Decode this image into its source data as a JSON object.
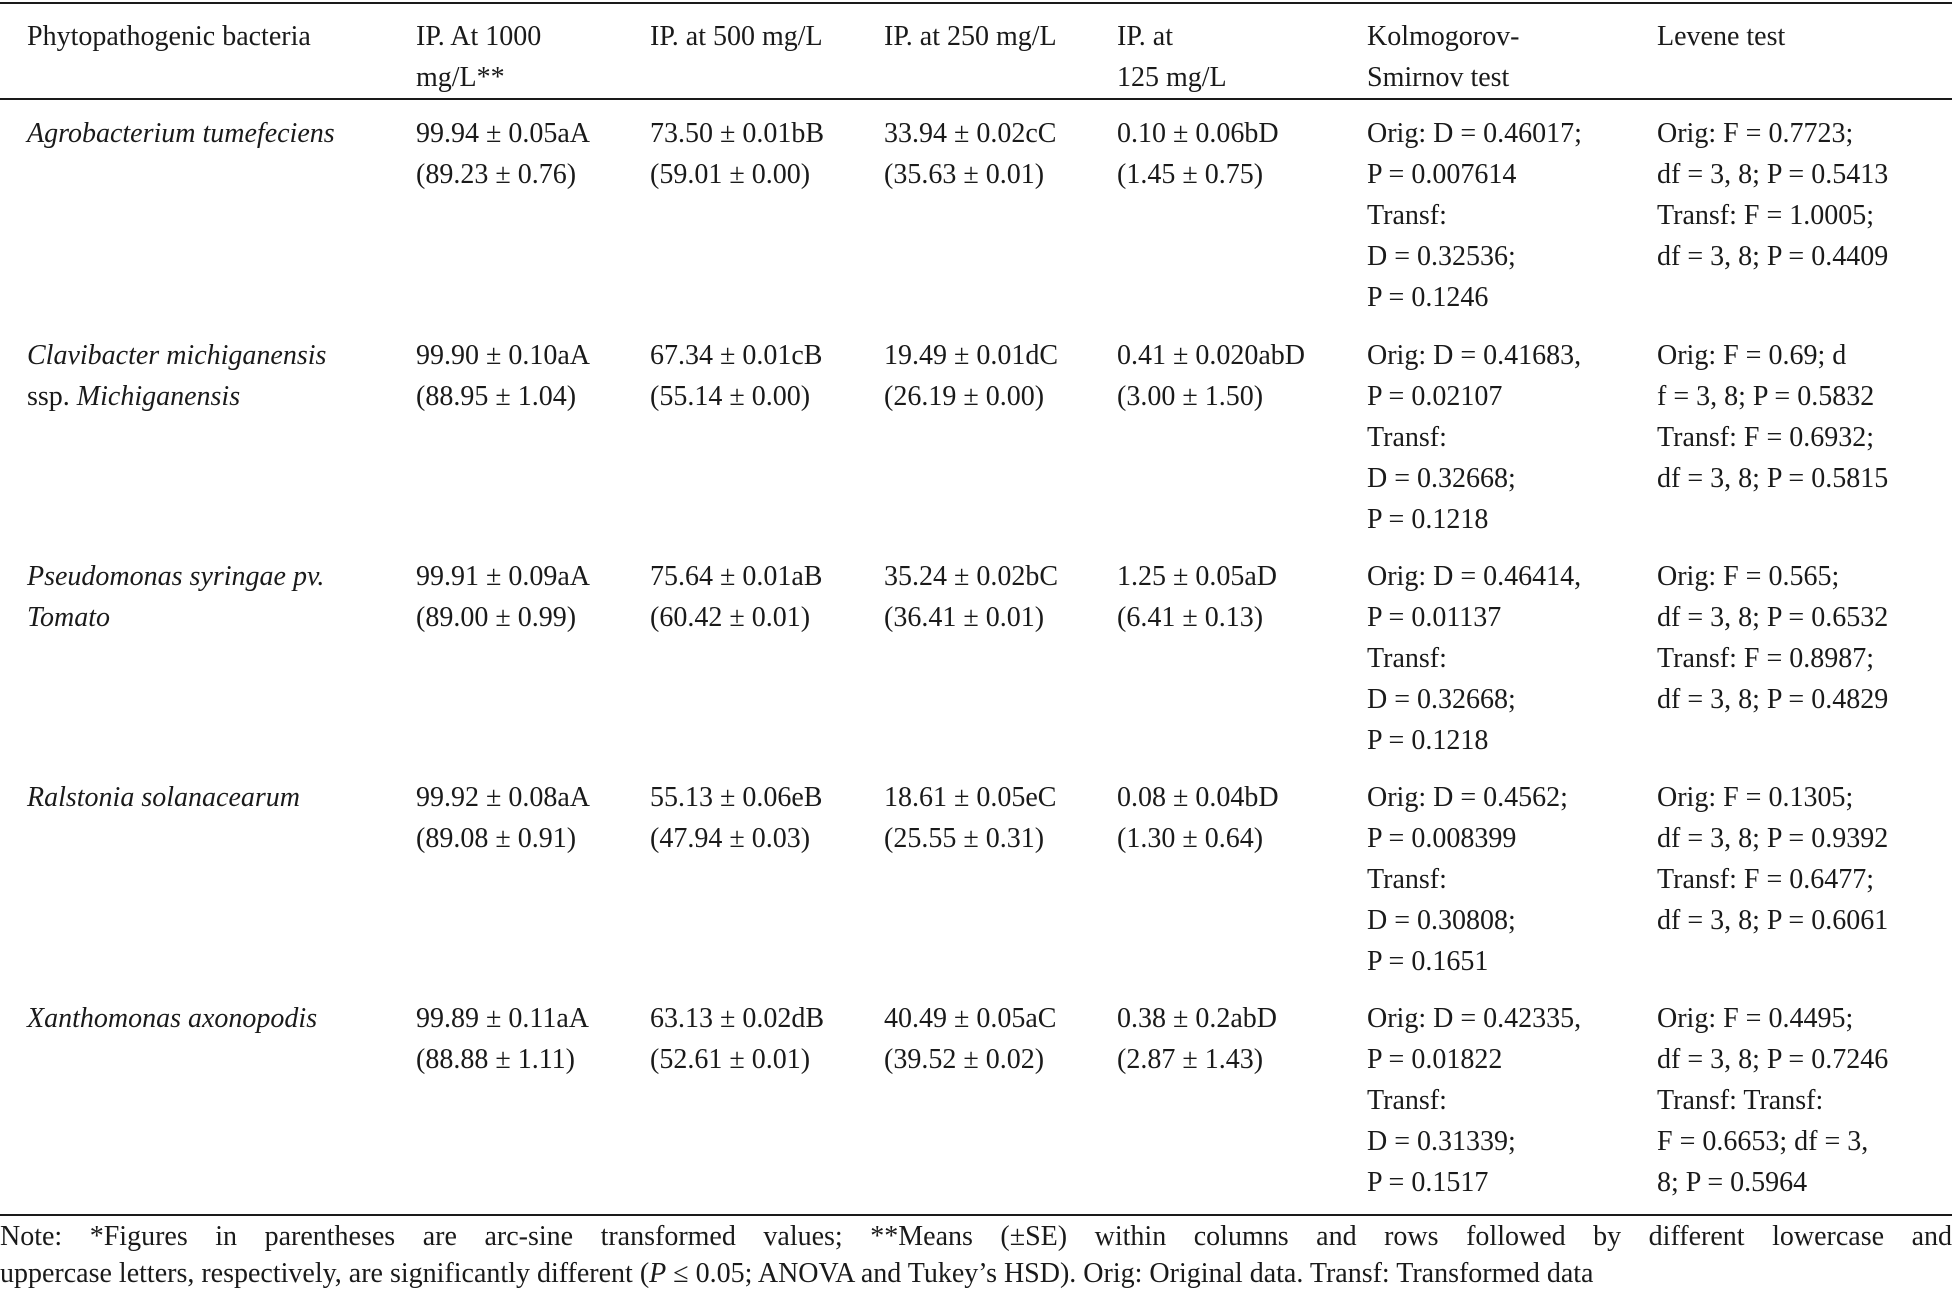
{
  "table": {
    "headers": [
      [
        "Phytopathogenic bacteria"
      ],
      [
        "IP. At 1000",
        "mg/L**"
      ],
      [
        "IP. at 500 mg/L"
      ],
      [
        "IP. at 250 mg/L"
      ],
      [
        "IP. at",
        "125 mg/L"
      ],
      [
        "Kolmogorov-",
        "Smirnov test"
      ],
      [
        "Levene test"
      ]
    ],
    "rows": [
      {
        "bacteria": [
          "Agrobacterium tumefeciens"
        ],
        "ip1000": [
          "99.94 ± 0.05aA",
          "(89.23 ± 0.76)"
        ],
        "ip500": [
          "73.50 ± 0.01bB",
          "(59.01 ± 0.00)"
        ],
        "ip250": [
          "33.94 ± 0.02cC",
          "(35.63 ± 0.01)"
        ],
        "ip125": [
          "0.10 ± 0.06bD",
          "(1.45 ± 0.75)"
        ],
        "ks": [
          "Orig: D = 0.46017;",
          "P = 0.007614",
          "Transf:",
          "D = 0.32536;",
          "P = 0.1246"
        ],
        "levene": [
          "Orig: F = 0.7723;",
          "df = 3, 8; P = 0.5413",
          "Transf: F = 1.0005;",
          "df = 3, 8; P = 0.4409"
        ]
      },
      {
        "bacteria": [
          "Clavibacter michiganensis",
          "ssp. |Michiganensis"
        ],
        "ip1000": [
          "99.90 ± 0.10aA",
          "(88.95 ± 1.04)"
        ],
        "ip500": [
          "67.34 ± 0.01cB",
          "(55.14 ± 0.00)"
        ],
        "ip250": [
          "19.49 ± 0.01dC",
          "(26.19 ± 0.00)"
        ],
        "ip125": [
          "0.41 ± 0.020abD",
          "(3.00 ± 1.50)"
        ],
        "ks": [
          "Orig: D = 0.41683,",
          "P = 0.02107",
          "Transf:",
          "D = 0.32668;",
          "P = 0.1218"
        ],
        "levene": [
          "Orig: F = 0.69; d",
          "f = 3, 8; P = 0.5832",
          "Transf: F = 0.6932;",
          "df = 3, 8; P = 0.5815"
        ]
      },
      {
        "bacteria": [
          "Pseudomonas syringae pv.",
          "Tomato"
        ],
        "ip1000": [
          "99.91 ± 0.09aA",
          "(89.00 ± 0.99)"
        ],
        "ip500": [
          "75.64 ± 0.01aB",
          "(60.42 ± 0.01)"
        ],
        "ip250": [
          "35.24 ± 0.02bC",
          "(36.41 ± 0.01)"
        ],
        "ip125": [
          "1.25 ± 0.05aD",
          "(6.41 ± 0.13)"
        ],
        "ks": [
          "Orig: D = 0.46414,",
          "P = 0.01137",
          "Transf:",
          "D = 0.32668;",
          "P = 0.1218"
        ],
        "levene": [
          "Orig: F = 0.565;",
          "df = 3, 8; P = 0.6532",
          "Transf: F = 0.8987;",
          "df = 3, 8; P = 0.4829"
        ]
      },
      {
        "bacteria": [
          "Ralstonia solanacearum"
        ],
        "ip1000": [
          "99.92 ± 0.08aA",
          "(89.08 ± 0.91)"
        ],
        "ip500": [
          "55.13 ± 0.06eB",
          "(47.94 ± 0.03)"
        ],
        "ip250": [
          "18.61 ± 0.05eC",
          "(25.55 ± 0.31)"
        ],
        "ip125": [
          "0.08 ± 0.04bD",
          "(1.30 ± 0.64)"
        ],
        "ks": [
          "Orig: D = 0.4562;",
          "P = 0.008399",
          "Transf:",
          "D = 0.30808;",
          "P = 0.1651"
        ],
        "levene": [
          "Orig: F = 0.1305;",
          "df = 3, 8; P = 0.9392",
          "Transf: F = 0.6477;",
          "df = 3, 8; P = 0.6061"
        ]
      },
      {
        "bacteria": [
          "Xanthomonas axonopodis"
        ],
        "ip1000": [
          "99.89 ± 0.11aA",
          "(88.88 ± 1.11)"
        ],
        "ip500": [
          "63.13 ± 0.02dB",
          "(52.61 ± 0.01)"
        ],
        "ip250": [
          "40.49 ± 0.05aC",
          "(39.52 ± 0.02)"
        ],
        "ip125": [
          "0.38 ± 0.2abD",
          "(2.87 ± 1.43)"
        ],
        "ks": [
          "Orig: D = 0.42335,",
          "P = 0.01822",
          "Transf:",
          "D = 0.31339;",
          "P = 0.1517"
        ],
        "levene": [
          "Orig: F = 0.4495;",
          "df = 3, 8; P = 0.7246",
          "Transf: Transf:",
          "F = 0.6653; df = 3,",
          "8; P = 0.5964"
        ]
      }
    ]
  },
  "note": {
    "line1": "Note: *Figures in parentheses are arc-sine transformed values; **Means (±SE) within columns and rows followed by different lowercase and",
    "line2_a": "uppercase letters, respectively, are significantly different (",
    "line2_p": "P",
    "line2_b": " ≤ 0.05; ANOVA and Tukey’s HSD). Orig: Original data. Transf: Transformed data"
  }
}
